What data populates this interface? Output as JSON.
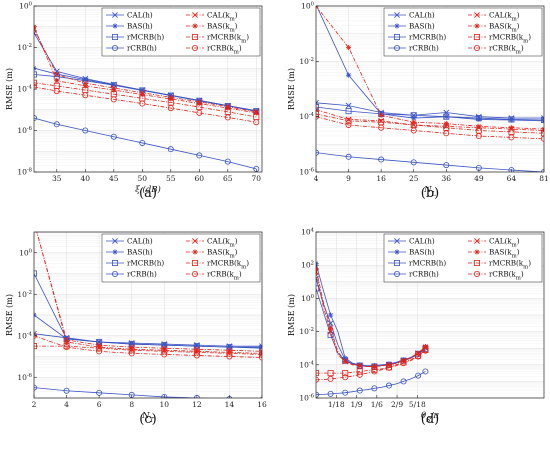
{
  "colors": {
    "blue": "#3b55c4",
    "red": "#e0231b",
    "grid": "#e4e4e4"
  },
  "legend_labels": [
    "CAL(h)",
    "BAS(h)",
    "rMCRB(h)",
    "rCRB(h)",
    "CAL(k_m)",
    "BAS(k_m)",
    "rMCRB(k_m)",
    "rCRB(k_m)"
  ],
  "legend_markers": [
    "x",
    "*",
    "square",
    "circle",
    "x",
    "*",
    "square",
    "circle"
  ],
  "legend_colors": [
    "blue",
    "blue",
    "blue",
    "blue",
    "red",
    "red",
    "red",
    "red"
  ],
  "legend_dash": [
    false,
    false,
    false,
    false,
    true,
    true,
    true,
    true
  ],
  "chart_data": [
    {
      "type": "line",
      "caption": "(a)",
      "xlabel": "ξ (dB)",
      "ylabel": "RMSE (m)",
      "xscale": "linear",
      "xlim": [
        31,
        71
      ],
      "ylim": [
        -8,
        0
      ],
      "xticks": [
        35,
        40,
        45,
        50,
        55,
        60,
        65,
        70
      ],
      "xticklabels": [
        "35",
        "40",
        "45",
        "50",
        "55",
        "60",
        "65",
        "70"
      ],
      "yticks": [
        -8,
        -6,
        -4,
        -2,
        0
      ],
      "yticklabels": [
        "10^-8",
        "10^-6",
        "10^-4",
        "10^-2",
        "10^0"
      ],
      "x": [
        31,
        35,
        40,
        45,
        50,
        55,
        60,
        65,
        70
      ],
      "series": [
        {
          "name": "CAL(h)",
          "values": [
            -1.3,
            -3.15,
            -3.5,
            -3.78,
            -4.05,
            -4.3,
            -4.55,
            -4.8,
            -5.05
          ]
        },
        {
          "name": "BAS(h)",
          "values": [
            -3.0,
            -3.28,
            -3.55,
            -3.8,
            -4.05,
            -4.3,
            -4.55,
            -4.8,
            -5.05
          ]
        },
        {
          "name": "rMCRB(h)",
          "values": [
            -3.3,
            -3.4,
            -3.6,
            -3.82,
            -4.07,
            -4.32,
            -4.57,
            -4.82,
            -5.07
          ]
        },
        {
          "name": "rCRB(h)",
          "values": [
            -5.4,
            -5.7,
            -6.0,
            -6.3,
            -6.6,
            -6.9,
            -7.2,
            -7.5,
            -7.85
          ]
        },
        {
          "name": "CAL(k_m)",
          "values": [
            -1.1,
            -3.3,
            -3.72,
            -3.95,
            -4.18,
            -4.4,
            -4.62,
            -4.85,
            -5.1
          ]
        },
        {
          "name": "BAS(k_m)",
          "values": [
            -1.0,
            -3.6,
            -3.85,
            -4.05,
            -4.27,
            -4.48,
            -4.7,
            -4.92,
            -5.15
          ]
        },
        {
          "name": "rMCRB(k_m)",
          "values": [
            -3.7,
            -3.85,
            -4.05,
            -4.25,
            -4.45,
            -4.65,
            -4.87,
            -5.1,
            -5.35
          ]
        },
        {
          "name": "rCRB(k_m)",
          "values": [
            -3.9,
            -4.1,
            -4.3,
            -4.5,
            -4.7,
            -4.92,
            -5.15,
            -5.37,
            -5.6
          ]
        }
      ]
    },
    {
      "type": "line",
      "caption": "(b)",
      "xlabel": "N_L",
      "ylabel": "RMSE (m)",
      "xscale": "sqrt",
      "xlim": [
        4,
        81
      ],
      "ylim": [
        -6,
        0
      ],
      "xticks": [
        4,
        9,
        16,
        25,
        36,
        49,
        64,
        81
      ],
      "xticklabels": [
        "4",
        "9",
        "16",
        "25",
        "36",
        "49",
        "64",
        "81"
      ],
      "yticks": [
        -6,
        -4,
        -2,
        0
      ],
      "yticklabels": [
        "10^-6",
        "10^-4",
        "10^-2",
        "10^0"
      ],
      "x": [
        4,
        9,
        16,
        25,
        36,
        49,
        64,
        81
      ],
      "series": [
        {
          "name": "CAL(h)",
          "values": [
            -3.5,
            -3.6,
            -3.85,
            -3.95,
            -3.85,
            -4.0,
            -4.05,
            -4.05
          ]
        },
        {
          "name": "BAS(h)",
          "values": [
            0.05,
            -2.5,
            -3.9,
            -4.05,
            -4.0,
            -4.1,
            -4.12,
            -4.15
          ]
        },
        {
          "name": "rMCRB(h)",
          "values": [
            -3.65,
            -3.8,
            -3.9,
            -3.95,
            -4.0,
            -4.05,
            -4.1,
            -4.12
          ]
        },
        {
          "name": "rCRB(h)",
          "values": [
            -5.3,
            -5.45,
            -5.55,
            -5.65,
            -5.75,
            -5.85,
            -5.93,
            -6.0
          ]
        },
        {
          "name": "CAL(k_m)",
          "values": [
            -3.75,
            -4.1,
            -4.15,
            -4.3,
            -4.35,
            -4.4,
            -4.45,
            -4.5
          ]
        },
        {
          "name": "BAS(k_m)",
          "values": [
            0.0,
            -1.5,
            -3.95,
            -4.2,
            -4.25,
            -4.35,
            -4.4,
            -4.45
          ]
        },
        {
          "name": "rMCRB(k_m)",
          "values": [
            -3.9,
            -4.15,
            -4.2,
            -4.3,
            -4.4,
            -4.5,
            -4.55,
            -4.6
          ]
        },
        {
          "name": "rCRB(k_m)",
          "values": [
            -4.0,
            -4.3,
            -4.4,
            -4.5,
            -4.6,
            -4.7,
            -4.75,
            -4.8
          ]
        }
      ]
    },
    {
      "type": "line",
      "caption": "(c)",
      "xlabel": "N_T",
      "ylabel": "RMSE (m)",
      "xscale": "linear",
      "xlim": [
        2,
        16
      ],
      "ylim": [
        -7,
        1
      ],
      "xticks": [
        2,
        4,
        6,
        8,
        10,
        12,
        14,
        16
      ],
      "xticklabels": [
        "2",
        "4",
        "6",
        "8",
        "10",
        "12",
        "14",
        "16"
      ],
      "yticks": [
        -6,
        -4,
        -2,
        0
      ],
      "yticklabels": [
        "10^-6",
        "10^-4",
        "10^-2",
        "10^0"
      ],
      "x": [
        2,
        4,
        6,
        8,
        10,
        12,
        14,
        16
      ],
      "series": [
        {
          "name": "CAL(h)",
          "values": [
            -3.9,
            -4.1,
            -4.3,
            -4.35,
            -4.4,
            -4.45,
            -4.5,
            -4.5
          ]
        },
        {
          "name": "BAS(h)",
          "values": [
            -3.0,
            -4.15,
            -4.3,
            -4.4,
            -4.45,
            -4.5,
            -4.55,
            -4.55
          ]
        },
        {
          "name": "rMCRB(h)",
          "values": [
            -1.0,
            -4.15,
            -4.3,
            -4.4,
            -4.45,
            -4.5,
            -4.55,
            -4.6
          ]
        },
        {
          "name": "rCRB(h)",
          "values": [
            -6.5,
            -6.65,
            -6.75,
            -6.85,
            -6.95,
            -7.0,
            -7.05,
            -7.1
          ]
        },
        {
          "name": "CAL(k_m)",
          "values": [
            1.5,
            -4.2,
            -4.45,
            -4.55,
            -4.6,
            -4.65,
            -4.7,
            -4.75
          ]
        },
        {
          "name": "BAS(k_m)",
          "values": [
            1.5,
            -4.3,
            -4.55,
            -4.65,
            -4.7,
            -4.75,
            -4.8,
            -4.85
          ]
        },
        {
          "name": "rMCRB(k_m)",
          "values": [
            -4.5,
            -4.5,
            -4.6,
            -4.7,
            -4.75,
            -4.8,
            -4.85,
            -4.9
          ]
        },
        {
          "name": "rCRB(k_m)",
          "values": [
            -4.0,
            -4.55,
            -4.75,
            -4.85,
            -4.9,
            -4.95,
            -5.0,
            -5.05
          ]
        }
      ]
    },
    {
      "type": "line",
      "caption": "(d)",
      "xlabel": "θ_S/π",
      "ylabel": "RMSE (m)",
      "xscale": "linear",
      "xlim": [
        0,
        0.625
      ],
      "ylim": [
        -6,
        4
      ],
      "xticks": [
        0.0556,
        0.1111,
        0.1667,
        0.2222,
        0.2778
      ],
      "xticklabels": [
        "1/18",
        "1/9",
        "1/6",
        "2/9",
        "5/18"
      ],
      "yticks": [
        -6,
        -4,
        -2,
        0,
        2,
        4
      ],
      "yticklabels": [
        "10^-6",
        "10^-4",
        "10^-2",
        "10^0",
        "10^2",
        "10^4"
      ],
      "x": [
        0.0,
        0.02,
        0.04,
        0.06,
        0.08,
        0.1,
        0.12,
        0.14,
        0.16,
        0.18,
        0.2,
        0.22,
        0.24,
        0.26,
        0.28,
        0.3
      ],
      "series": [
        {
          "name": "CAL(h)",
          "values": [
            1.2,
            -0.3,
            -1.5,
            -2.8,
            -3.7,
            -3.95,
            -4.05,
            -4.1,
            -4.1,
            -4.05,
            -4.0,
            -3.9,
            -3.75,
            -3.6,
            -3.3,
            -3.0
          ]
        },
        {
          "name": "BAS(h)",
          "values": [
            2.1,
            0.5,
            -1.0,
            -2.0,
            -3.6,
            -3.9,
            -4.0,
            -4.05,
            -4.05,
            -4.0,
            -3.95,
            -3.85,
            -3.7,
            -3.55,
            -3.3,
            -2.9
          ]
        },
        {
          "name": "rMCRB(h)",
          "values": [
            0.6,
            -0.8,
            -2.2,
            -3.3,
            -3.75,
            -3.95,
            -4.05,
            -4.1,
            -4.1,
            -4.05,
            -4.0,
            -3.9,
            -3.75,
            -3.6,
            -3.35,
            -3.05
          ]
        },
        {
          "name": "rCRB(h)",
          "values": [
            -5.8,
            -5.78,
            -5.75,
            -5.72,
            -5.68,
            -5.62,
            -5.55,
            -5.5,
            -5.42,
            -5.35,
            -5.25,
            -5.15,
            -5.0,
            -4.85,
            -4.65,
            -4.4
          ]
        },
        {
          "name": "CAL(k_m)",
          "values": [
            1.6,
            -0.5,
            -2.0,
            -3.4,
            -3.8,
            -3.95,
            -4.05,
            -4.1,
            -4.1,
            -4.05,
            -4.0,
            -3.9,
            -3.75,
            -3.6,
            -3.3,
            -2.95
          ]
        },
        {
          "name": "BAS(k_m)",
          "values": [
            1.8,
            -0.2,
            -1.8,
            -3.2,
            -3.8,
            -4.0,
            -4.05,
            -4.1,
            -4.1,
            -4.05,
            -4.0,
            -3.9,
            -3.75,
            -3.55,
            -3.3,
            -2.9
          ]
        },
        {
          "name": "rMCRB(k_m)",
          "values": [
            -4.5,
            -4.5,
            -4.5,
            -4.5,
            -4.5,
            -4.45,
            -4.4,
            -4.35,
            -4.3,
            -4.25,
            -4.15,
            -4.0,
            -3.85,
            -3.7,
            -3.45,
            -3.1
          ]
        },
        {
          "name": "rCRB(k_m)",
          "values": [
            -4.9,
            -4.9,
            -4.85,
            -4.8,
            -4.75,
            -4.68,
            -4.6,
            -4.5,
            -4.4,
            -4.3,
            -4.18,
            -4.05,
            -3.9,
            -3.75,
            -3.5,
            -3.15
          ]
        }
      ]
    }
  ]
}
